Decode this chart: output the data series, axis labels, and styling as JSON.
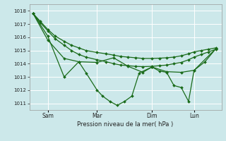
{
  "background_color": "#cce8ea",
  "grid_color": "#ffffff",
  "line_color": "#1a6b1a",
  "xlabel": "Pression niveau de la mer( hPa )",
  "ylim": [
    1010.5,
    1018.5
  ],
  "yticks": [
    1011,
    1012,
    1013,
    1014,
    1015,
    1016,
    1017,
    1018
  ],
  "xtick_labels": [
    "Sam",
    "Mar",
    "Dim",
    "Lun"
  ],
  "xtick_positions": [
    0.08,
    0.35,
    0.65,
    0.88
  ],
  "series1_x": [
    0.0,
    0.04,
    0.08,
    0.12,
    0.17,
    0.21,
    0.25,
    0.29,
    0.35,
    0.4,
    0.44,
    0.48,
    0.52,
    0.56,
    0.6,
    0.65,
    0.69,
    0.73,
    0.77,
    0.81,
    0.85,
    0.88,
    0.92,
    0.96,
    1.0
  ],
  "series1_y": [
    1017.8,
    1017.2,
    1016.6,
    1016.1,
    1015.7,
    1015.4,
    1015.2,
    1015.0,
    1014.85,
    1014.75,
    1014.65,
    1014.55,
    1014.5,
    1014.45,
    1014.4,
    1014.4,
    1014.42,
    1014.45,
    1014.5,
    1014.6,
    1014.75,
    1014.9,
    1015.0,
    1015.1,
    1015.2
  ],
  "series2_x": [
    0.0,
    0.04,
    0.08,
    0.12,
    0.17,
    0.21,
    0.25,
    0.29,
    0.35,
    0.4,
    0.44,
    0.48,
    0.52,
    0.56,
    0.6,
    0.65,
    0.69,
    0.73,
    0.77,
    0.81,
    0.85,
    0.88,
    0.92,
    0.96,
    1.0
  ],
  "series2_y": [
    1017.8,
    1017.1,
    1016.5,
    1015.9,
    1015.4,
    1015.0,
    1014.7,
    1014.5,
    1014.3,
    1014.15,
    1014.0,
    1013.9,
    1013.85,
    1013.8,
    1013.78,
    1013.8,
    1013.85,
    1013.9,
    1014.0,
    1014.1,
    1014.3,
    1014.5,
    1014.7,
    1014.9,
    1015.1
  ],
  "series3_x": [
    0.0,
    0.08,
    0.17,
    0.25,
    0.35,
    0.44,
    0.52,
    0.6,
    0.65,
    0.73,
    0.81,
    0.88,
    1.0
  ],
  "series3_y": [
    1017.8,
    1015.8,
    1014.4,
    1014.15,
    1014.1,
    1014.45,
    1013.8,
    1013.35,
    1013.75,
    1013.4,
    1013.35,
    1013.5,
    1015.15
  ],
  "series4_x": [
    0.0,
    0.08,
    0.17,
    0.25,
    0.29,
    0.35,
    0.38,
    0.42,
    0.46,
    0.5,
    0.54,
    0.58,
    0.65,
    0.69,
    0.73,
    0.77,
    0.81,
    0.85,
    0.88,
    0.94,
    1.0
  ],
  "series4_y": [
    1017.8,
    1016.1,
    1013.0,
    1014.15,
    1013.3,
    1012.0,
    1011.55,
    1011.15,
    1010.85,
    1011.15,
    1011.55,
    1013.3,
    1013.75,
    1013.45,
    1013.35,
    1012.35,
    1012.2,
    1011.15,
    1013.5,
    1014.15,
    1015.15
  ]
}
